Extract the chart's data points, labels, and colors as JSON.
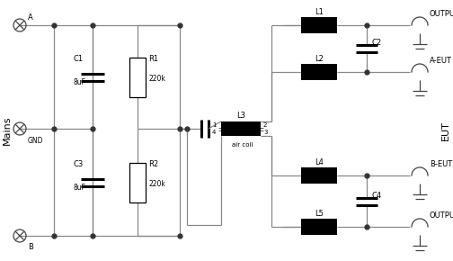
{
  "bg_color": "#ffffff",
  "line_color": "#888888",
  "comp_color": "#000000",
  "text_color": "#000000",
  "mains_label": "Mains",
  "eut_label": "EUT",
  "labels": {
    "A": "A",
    "B": "B",
    "GND": "GND",
    "C1": "C1",
    "C1v": "8uF",
    "C3": "C3",
    "C3v": "8uF",
    "R1": "R1",
    "R1v": "220k",
    "R2": "R2",
    "R2v": "220k",
    "L3": "L3",
    "air_coil": "air coil",
    "n1": "1",
    "n2": "2",
    "n3": "3",
    "n4": "4",
    "L1": "L1",
    "L2": "L2",
    "L4": "L4",
    "L5": "L5",
    "C2": "C2",
    "C4": "C4",
    "outA": "OUTPUT-A",
    "aeut": "A-EUT",
    "beut": "B-EUT",
    "outB": "OUTPUT-B"
  }
}
